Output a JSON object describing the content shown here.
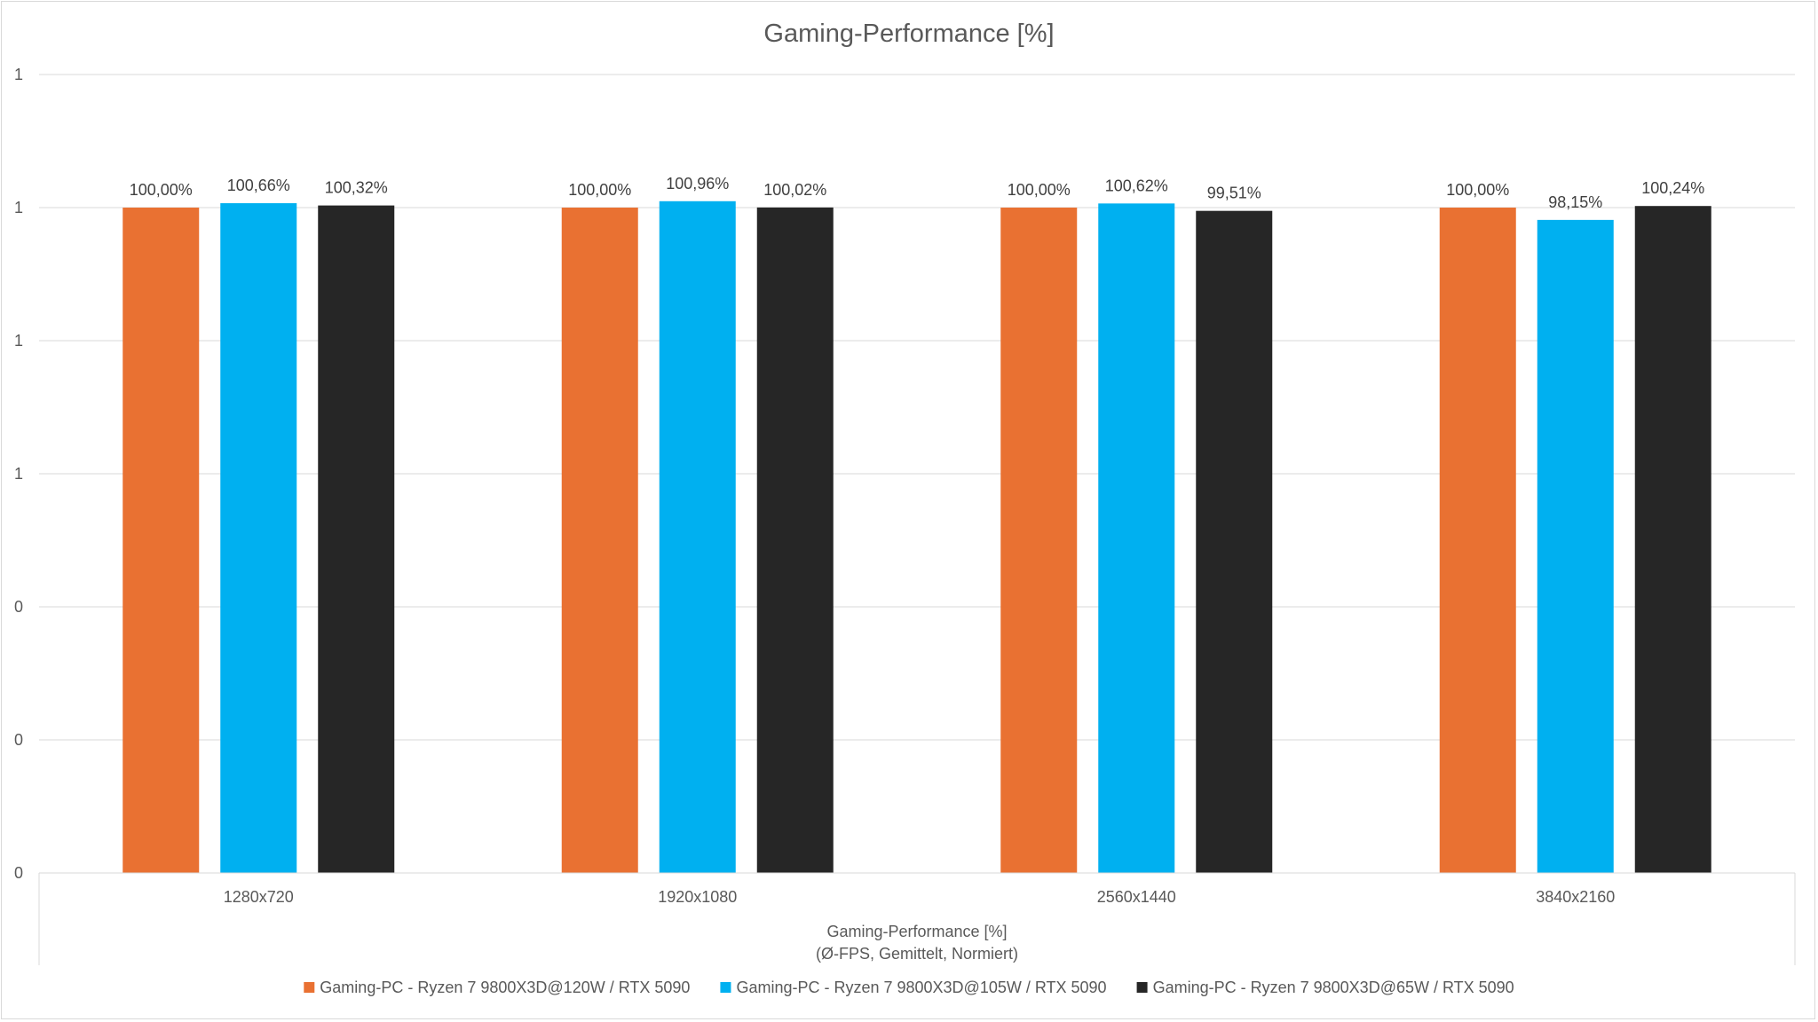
{
  "chart_data": {
    "type": "bar",
    "title": "Gaming-Performance  [%]",
    "xlabel_lines": [
      "Gaming-Performance [%]",
      "(Ø-FPS, Gemittelt, Normiert)"
    ],
    "ylabel": "",
    "categories": [
      "1280x720",
      "1920x1080",
      "2560x1440",
      "3840x2160"
    ],
    "ylim": [
      0,
      1.2
    ],
    "y_tick_values": [
      0,
      0.2,
      0.4,
      0.6,
      0.8,
      1.0,
      1.2
    ],
    "y_tick_labels": [
      "0",
      "0",
      "0",
      "1",
      "1",
      "1",
      "1"
    ],
    "grid": true,
    "legend_position": "bottom",
    "series": [
      {
        "name": "Gaming-PC - Ryzen 7 9800X3D@120W / RTX 5090",
        "color": "#E97132",
        "values": [
          1.0,
          1.0,
          1.0,
          1.0
        ],
        "labels": [
          "100,00%",
          "100,00%",
          "100,00%",
          "100,00%"
        ]
      },
      {
        "name": "Gaming-PC - Ryzen 7 9800X3D@105W / RTX 5090",
        "color": "#00B0F0",
        "values": [
          1.0066,
          1.0096,
          1.0062,
          0.9815
        ],
        "labels": [
          "100,66%",
          "100,96%",
          "100,62%",
          "98,15%"
        ]
      },
      {
        "name": "Gaming-PC - Ryzen 7 9800X3D@65W / RTX 5090",
        "color": "#262626",
        "values": [
          1.0032,
          1.0002,
          0.9951,
          1.0024
        ],
        "labels": [
          "100,32%",
          "100,02%",
          "99,51%",
          "100,24%"
        ]
      }
    ]
  }
}
